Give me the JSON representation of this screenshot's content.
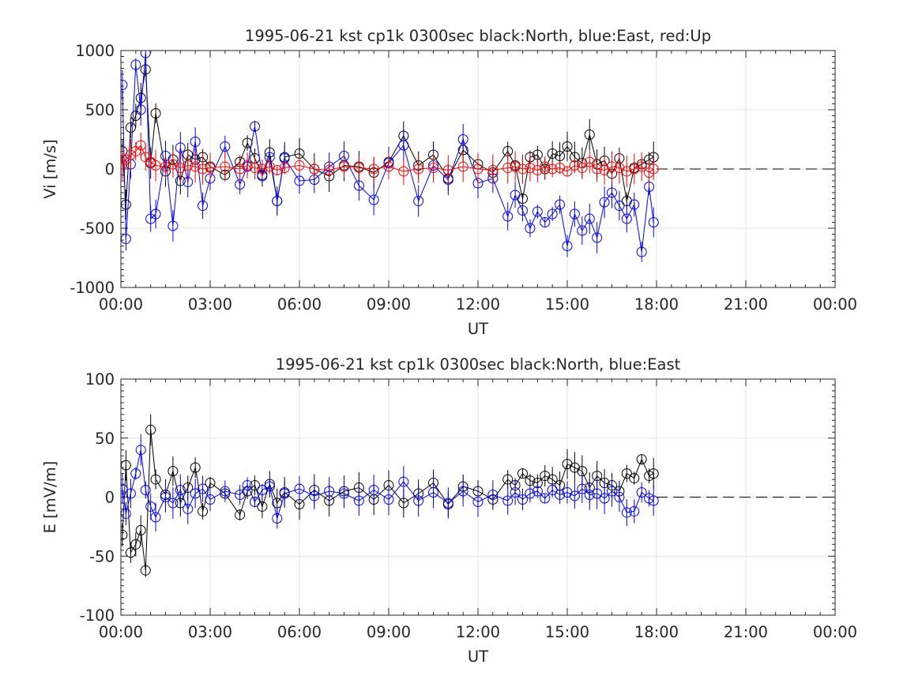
{
  "chart_data": [
    {
      "type": "scatter",
      "title": "1995-06-21 kst cp1k 0300sec black:North, blue:East, red:Up",
      "xlabel": "UT",
      "ylabel": "Vi [m/s]",
      "xlim": [
        0,
        24
      ],
      "ylim": [
        -1000,
        1000
      ],
      "grid": true,
      "x_tick_labels": [
        "00:00",
        "03:00",
        "06:00",
        "09:00",
        "12:00",
        "15:00",
        "18:00",
        "21:00",
        "00:00"
      ],
      "y_ticks": [
        -1000,
        -500,
        0,
        500,
        1000
      ],
      "y_tick_labels": [
        "-1000",
        "-500",
        "0",
        "500",
        "1000"
      ],
      "zero_line": {
        "from_hour": 18,
        "to_hour": 24,
        "style": "dashed"
      },
      "series_hours": [
        0.05,
        0.17,
        0.33,
        0.5,
        0.67,
        0.83,
        1.0,
        1.17,
        1.5,
        1.75,
        2.0,
        2.25,
        2.5,
        2.75,
        3.0,
        3.5,
        4.0,
        4.25,
        4.5,
        4.75,
        5.0,
        5.25,
        5.5,
        6.0,
        6.5,
        7.0,
        7.5,
        8.0,
        8.5,
        9.0,
        9.5,
        10.0,
        10.5,
        11.0,
        11.5,
        12.0,
        12.5,
        13.0,
        13.25,
        13.5,
        13.75,
        14.0,
        14.25,
        14.5,
        14.75,
        15.0,
        15.25,
        15.5,
        15.75,
        16.0,
        16.25,
        16.5,
        16.75,
        17.0,
        17.25,
        17.5,
        17.75,
        17.9
      ],
      "series": [
        {
          "name": "North",
          "color": "#000000",
          "values": [
            150,
            -300,
            350,
            450,
            600,
            840,
            50,
            470,
            -20,
            80,
            -100,
            120,
            80,
            100,
            20,
            -50,
            60,
            220,
            90,
            -50,
            140,
            -270,
            100,
            130,
            0,
            -60,
            30,
            20,
            -30,
            60,
            280,
            30,
            120,
            -80,
            160,
            40,
            -30,
            150,
            30,
            -250,
            100,
            120,
            0,
            130,
            110,
            190,
            100,
            50,
            290,
            40,
            70,
            -40,
            90,
            -270,
            10,
            40,
            80,
            100
          ]
        },
        {
          "name": "East",
          "color": "#0000ff",
          "values": [
            710,
            -590,
            40,
            880,
            500,
            980,
            -420,
            -380,
            110,
            -480,
            180,
            -110,
            230,
            -310,
            -80,
            190,
            -130,
            20,
            360,
            -60,
            100,
            -270,
            90,
            -100,
            -90,
            20,
            110,
            -140,
            -260,
            50,
            200,
            -270,
            30,
            -90,
            250,
            -120,
            -80,
            -400,
            -220,
            -350,
            -500,
            -360,
            -450,
            -380,
            -300,
            -650,
            -380,
            -520,
            -420,
            -580,
            -280,
            -200,
            -310,
            -420,
            -300,
            -700,
            -150,
            -450
          ]
        },
        {
          "name": "Up",
          "color": "#ff0000",
          "values": [
            40,
            80,
            120,
            150,
            200,
            100,
            60,
            30,
            20,
            40,
            10,
            30,
            20,
            0,
            10,
            20,
            0,
            30,
            10,
            0,
            20,
            -10,
            10,
            30,
            0,
            -10,
            20,
            10,
            0,
            20,
            -20,
            0,
            10,
            -10,
            20,
            0,
            -10,
            10,
            20,
            0,
            10,
            -10,
            20,
            0,
            10,
            -20,
            30,
            10,
            60,
            0,
            -10,
            20,
            10,
            -20,
            0,
            20,
            -30,
            0
          ]
        }
      ]
    },
    {
      "type": "scatter",
      "title": "1995-06-21 kst cp1k 0300sec black:North, blue:East",
      "xlabel": "UT",
      "ylabel": "E [mV/m]",
      "xlim": [
        0,
        24
      ],
      "ylim": [
        -100,
        100
      ],
      "grid": true,
      "x_tick_labels": [
        "00:00",
        "03:00",
        "06:00",
        "09:00",
        "12:00",
        "15:00",
        "18:00",
        "21:00",
        "00:00"
      ],
      "y_ticks": [
        -100,
        -50,
        0,
        50,
        100
      ],
      "y_tick_labels": [
        "-100",
        "-50",
        "0",
        "50",
        "100"
      ],
      "zero_line": {
        "from_hour": 18,
        "to_hour": 24,
        "style": "dashed"
      },
      "series_hours": [
        0.05,
        0.17,
        0.33,
        0.5,
        0.67,
        0.83,
        1.0,
        1.17,
        1.5,
        1.75,
        2.0,
        2.25,
        2.5,
        2.75,
        3.0,
        3.5,
        4.0,
        4.25,
        4.5,
        4.75,
        5.0,
        5.25,
        5.5,
        6.0,
        6.5,
        7.0,
        7.5,
        8.0,
        8.5,
        9.0,
        9.5,
        10.0,
        10.5,
        11.0,
        11.5,
        12.0,
        12.5,
        13.0,
        13.25,
        13.5,
        13.75,
        14.0,
        14.25,
        14.5,
        14.75,
        15.0,
        15.25,
        15.5,
        15.75,
        16.0,
        16.25,
        16.5,
        16.75,
        17.0,
        17.25,
        17.5,
        17.75,
        17.9
      ],
      "series": [
        {
          "name": "North",
          "color": "#000000",
          "values": [
            -32,
            27,
            -47,
            -40,
            -28,
            -62,
            57,
            15,
            2,
            22,
            -5,
            8,
            25,
            -12,
            12,
            3,
            -15,
            5,
            10,
            -8,
            11,
            -5,
            4,
            -6,
            6,
            -3,
            5,
            8,
            -2,
            10,
            -5,
            3,
            12,
            -6,
            9,
            5,
            -2,
            15,
            10,
            20,
            14,
            12,
            18,
            15,
            10,
            28,
            25,
            22,
            8,
            18,
            12,
            10,
            5,
            20,
            16,
            32,
            18,
            20
          ]
        },
        {
          "name": "East",
          "color": "#0000ff",
          "values": [
            7,
            -14,
            3,
            20,
            40,
            6,
            -8,
            -17,
            0,
            -5,
            6,
            -10,
            3,
            7,
            -2,
            5,
            2,
            10,
            -4,
            6,
            9,
            -18,
            3,
            7,
            1,
            5,
            3,
            -3,
            6,
            -2,
            13,
            -3,
            4,
            -5,
            5,
            -4,
            2,
            -3,
            4,
            -2,
            3,
            5,
            -1,
            6,
            2,
            4,
            1,
            7,
            2,
            3,
            -1,
            5,
            0,
            -13,
            -12,
            4,
            -1,
            -3
          ]
        }
      ]
    }
  ]
}
